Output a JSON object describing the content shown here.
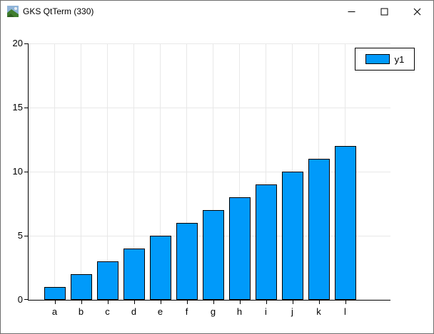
{
  "window": {
    "title": "GKS QtTerm (330)"
  },
  "titlebar": {
    "icons": [
      "app-icon",
      "minimize-icon",
      "maximize-icon",
      "close-icon"
    ]
  },
  "chart_data": {
    "type": "bar",
    "title": "",
    "xlabel": "",
    "ylabel": "",
    "categories": [
      "a",
      "b",
      "c",
      "d",
      "e",
      "f",
      "g",
      "h",
      "i",
      "j",
      "k",
      "l"
    ],
    "series": [
      {
        "name": "y1",
        "values": [
          1,
          2,
          3,
          4,
          5,
          6,
          7,
          8,
          9,
          10,
          11,
          12
        ]
      }
    ],
    "ylim": [
      0,
      20
    ],
    "yticks": [
      0,
      5,
      10,
      15,
      20
    ],
    "grid": true,
    "legend_position": "top-right",
    "bar_color": "#009AFA",
    "bar_border_color": "#000000"
  }
}
